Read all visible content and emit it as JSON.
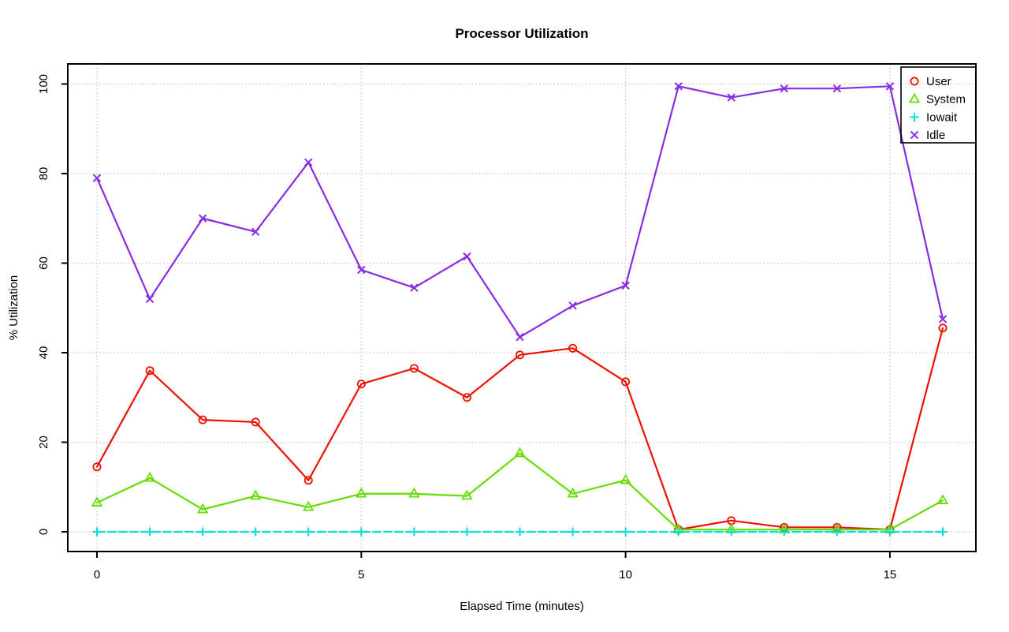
{
  "page": {
    "background": "#ffffff",
    "plot_border_color": "#000000",
    "grid_color": "#c4c4c4"
  },
  "chart_data": {
    "type": "line",
    "title": "Processor Utilization",
    "xlabel": "Elapsed Time (minutes)",
    "ylabel": "% Utilization",
    "x": [
      0,
      1,
      2,
      3,
      4,
      5,
      6,
      7,
      8,
      9,
      10,
      11,
      12,
      13,
      14,
      15,
      16
    ],
    "xticks": [
      0,
      5,
      10,
      15
    ],
    "yticks": [
      0,
      20,
      40,
      60,
      80,
      100
    ],
    "xlim": [
      -0.6,
      16.6
    ],
    "ylim": [
      0,
      100
    ],
    "grid": "dotted-both-axes",
    "legend_position": "top-right",
    "series": [
      {
        "name": "User",
        "color": "#ee1100",
        "marker": "circle",
        "values": [
          14.5,
          36,
          25,
          24.5,
          11.5,
          33,
          36.5,
          30,
          39.5,
          41,
          33.5,
          0.5,
          2.5,
          1,
          1,
          0.5,
          45.5
        ]
      },
      {
        "name": "System",
        "color": "#66dd00",
        "marker": "triangle",
        "values": [
          6.5,
          12,
          5,
          8,
          5.5,
          8.5,
          8.5,
          8,
          17.5,
          8.5,
          11.5,
          0.5,
          0.5,
          0.5,
          0.5,
          0.5,
          7
        ]
      },
      {
        "name": "Iowait",
        "color": "#00dede",
        "marker": "plus",
        "values": [
          0,
          0,
          0,
          0,
          0,
          0,
          0,
          0,
          0,
          0,
          0,
          0,
          0,
          0,
          0,
          0,
          0
        ]
      },
      {
        "name": "Idle",
        "color": "#8a2be2",
        "marker": "cross",
        "values": [
          79,
          52,
          70,
          67,
          82.5,
          58.5,
          54.5,
          61.5,
          43.5,
          50.5,
          55,
          99.5,
          97,
          99,
          99,
          99.5,
          47.5
        ]
      }
    ]
  }
}
